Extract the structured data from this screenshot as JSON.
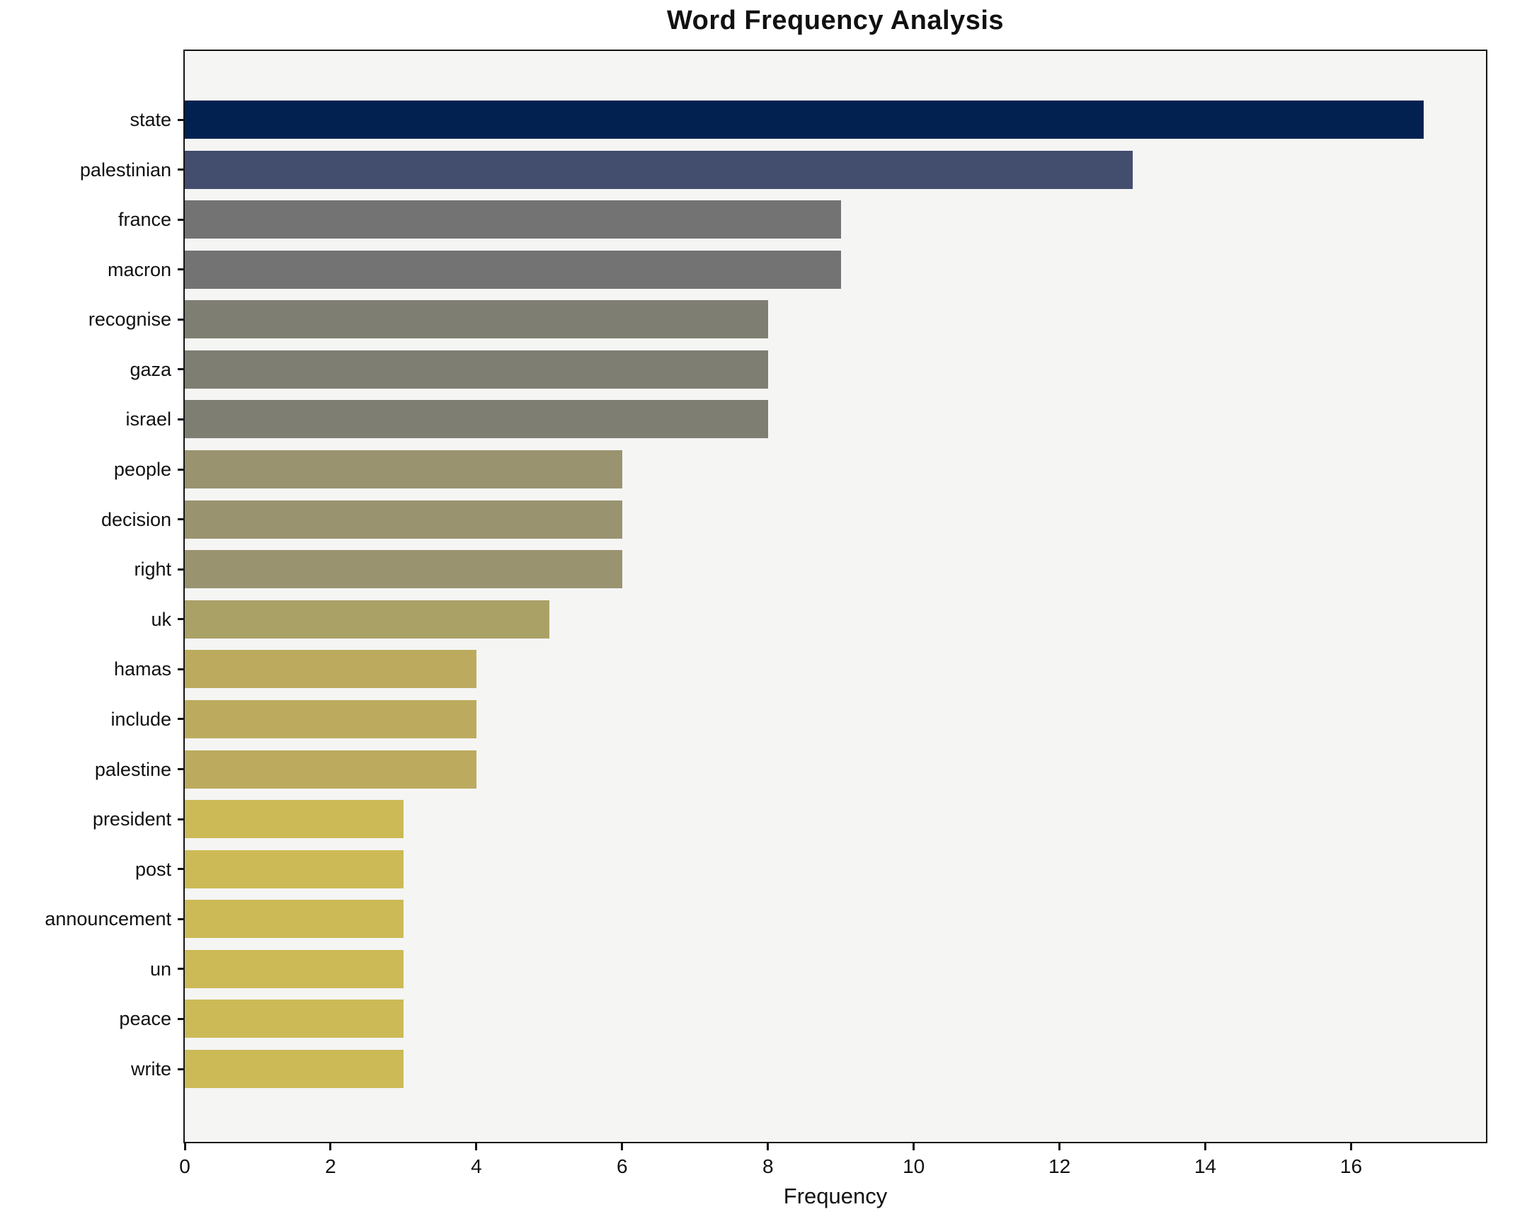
{
  "title": "Word Frequency Analysis",
  "chart_data": {
    "type": "bar",
    "orientation": "horizontal",
    "title": "Word Frequency Analysis",
    "xlabel": "Frequency",
    "ylabel": "",
    "categories": [
      "state",
      "palestinian",
      "france",
      "macron",
      "recognise",
      "gaza",
      "israel",
      "people",
      "decision",
      "right",
      "uk",
      "hamas",
      "include",
      "palestine",
      "president",
      "post",
      "announcement",
      "un",
      "peace",
      "write"
    ],
    "values": [
      17,
      13,
      9,
      9,
      8,
      8,
      8,
      6,
      6,
      6,
      5,
      4,
      4,
      4,
      3,
      3,
      3,
      3,
      3,
      3
    ],
    "bar_colors": [
      "#032150",
      "#434e6f",
      "#737374",
      "#737374",
      "#7f7e72",
      "#7f7e72",
      "#7f7e72",
      "#9a9370",
      "#9a9370",
      "#9a9370",
      "#aaa167",
      "#bcab5e",
      "#bcab5e",
      "#bcab5e",
      "#ccba57",
      "#ccba57",
      "#ccba57",
      "#ccba57",
      "#ccba57",
      "#ccba57"
    ],
    "xlim": [
      0,
      17.85
    ],
    "xticks": [
      0,
      2,
      4,
      6,
      8,
      10,
      12,
      14,
      16
    ],
    "grid": false,
    "legend_position": "none",
    "plot_background": "#f5f5f4",
    "figure_background": "#ffffff",
    "spine_color": "#141414"
  }
}
